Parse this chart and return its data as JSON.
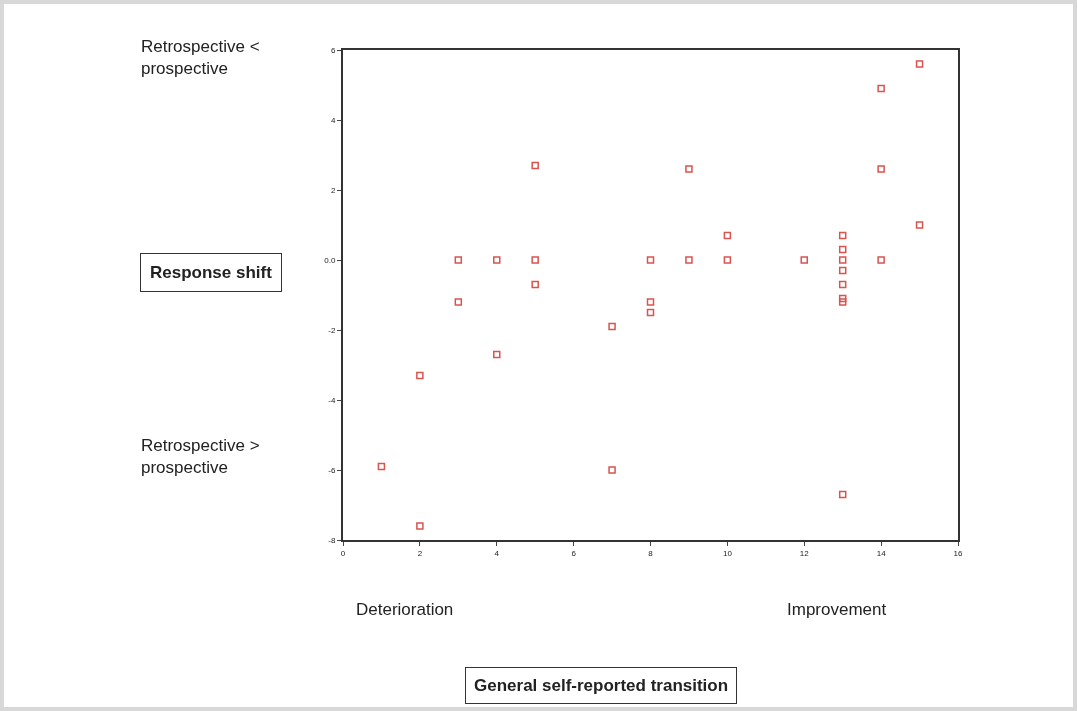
{
  "chart_data": {
    "type": "scatter",
    "ylabel": "Response shift",
    "annotations": [
      "Retrospective <\nprospective",
      "Retrospective >\nprospective",
      "Deterioration",
      "Improvement",
      "General self-reported transition"
    ],
    "x": [
      1,
      2,
      2,
      3,
      3,
      4,
      4,
      5,
      5,
      5,
      7,
      7,
      8,
      8,
      8,
      9,
      9,
      10,
      10,
      12,
      13,
      13,
      13,
      13,
      13,
      13,
      13,
      13,
      14,
      14,
      14,
      15,
      15
    ],
    "series": [
      {
        "color": "#d9534f",
        "values": [
          -5.9,
          -7.6,
          -3.3,
          0,
          -1.2,
          0,
          -2.7,
          2.7,
          0,
          -0.7,
          -1.9,
          -6.0,
          0,
          -1.2,
          -1.5,
          2.6,
          0,
          0.7,
          0,
          0,
          0.7,
          0.3,
          0,
          -0.3,
          -0.7,
          -1.1,
          -1.2,
          -6.7,
          4.9,
          2.6,
          0,
          5.6,
          1.0
        ]
      }
    ],
    "xlim": [
      0,
      16
    ],
    "xticks": [
      0,
      2,
      4,
      6,
      8,
      10,
      12,
      14,
      16
    ],
    "ylim": [
      -8,
      6
    ],
    "yticks": [
      -8,
      -6,
      -4,
      -2,
      {
        "value": 0,
        "label": "0.0"
      },
      2,
      4,
      6
    ],
    "marker": "square"
  }
}
